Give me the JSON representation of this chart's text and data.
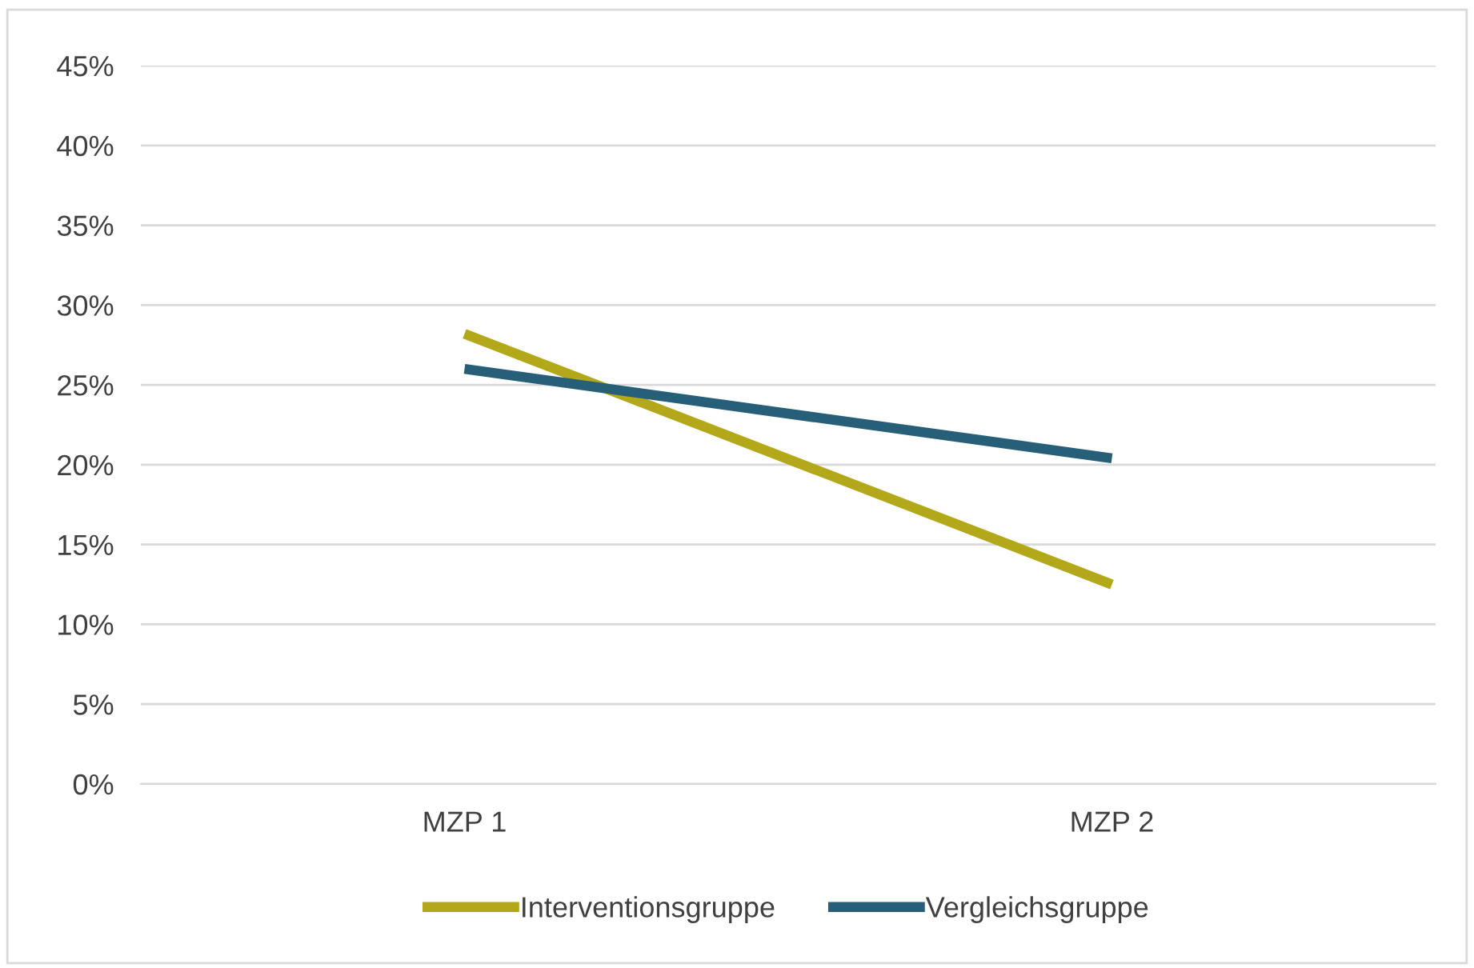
{
  "chart_data": {
    "type": "line",
    "categories": [
      "MZP 1",
      "MZP 2"
    ],
    "series": [
      {
        "name": "Interventionsgruppe",
        "color": "#b2a81a",
        "values": [
          28.2,
          12.5
        ]
      },
      {
        "name": "Vergleichsgruppe",
        "color": "#285f78",
        "values": [
          26.0,
          20.4
        ]
      }
    ],
    "ylim": [
      0,
      45
    ],
    "yticks": [
      {
        "value": 0,
        "label": "0%"
      },
      {
        "value": 5,
        "label": "5%"
      },
      {
        "value": 10,
        "label": "10%"
      },
      {
        "value": 15,
        "label": "15%"
      },
      {
        "value": 20,
        "label": "20%"
      },
      {
        "value": 25,
        "label": "25%"
      },
      {
        "value": 30,
        "label": "30%"
      },
      {
        "value": 35,
        "label": "35%"
      },
      {
        "value": 40,
        "label": "40%"
      },
      {
        "value": 45,
        "label": "45%"
      }
    ],
    "grid": "y",
    "legend": "bottom",
    "marker": "none",
    "line_style": "solid"
  }
}
